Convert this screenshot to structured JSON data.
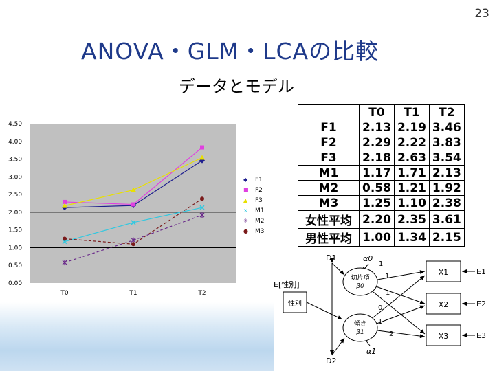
{
  "page_number": "23",
  "title": "ANOVA・GLM・LCAの比較",
  "subtitle": "データとモデル",
  "chart_data": {
    "type": "line",
    "title": "",
    "xlabel": "",
    "ylabel": "",
    "categories": [
      "T0",
      "T1",
      "T2"
    ],
    "y_ticks": [
      "0.00",
      "0.50",
      "1.00",
      "1.50",
      "2.00",
      "2.50",
      "3.00",
      "3.50",
      "4.00",
      "4.50"
    ],
    "ylim": [
      0,
      4.5
    ],
    "legend_position": "right",
    "series": [
      {
        "name": "F1",
        "values": [
          2.13,
          2.19,
          3.46
        ],
        "color": "#1f1f8f",
        "marker": "◆"
      },
      {
        "name": "F2",
        "values": [
          2.29,
          2.22,
          3.83
        ],
        "color": "#e040e0",
        "marker": "■"
      },
      {
        "name": "F3",
        "values": [
          2.18,
          2.63,
          3.54
        ],
        "color": "#e8e000",
        "marker": "▲"
      },
      {
        "name": "M1",
        "values": [
          1.17,
          1.71,
          2.13
        ],
        "color": "#30c8e0",
        "marker": "×"
      },
      {
        "name": "M2",
        "values": [
          0.58,
          1.21,
          1.92
        ],
        "color": "#6a2a8a",
        "marker": "✳"
      },
      {
        "name": "M3",
        "values": [
          1.25,
          1.1,
          2.38
        ],
        "color": "#7a1a1a",
        "marker": "●"
      }
    ]
  },
  "table": {
    "columns": [
      "",
      "T0",
      "T1",
      "T2"
    ],
    "rows": [
      {
        "label": "F1",
        "values": [
          "2.13",
          "2.19",
          "3.46"
        ]
      },
      {
        "label": "F2",
        "values": [
          "2.29",
          "2.22",
          "3.83"
        ]
      },
      {
        "label": "F3",
        "values": [
          "2.18",
          "2.63",
          "3.54"
        ]
      },
      {
        "label": "M1",
        "values": [
          "1.17",
          "1.71",
          "2.13"
        ]
      },
      {
        "label": "M2",
        "values": [
          "0.58",
          "1.21",
          "1.92"
        ]
      },
      {
        "label": "M3",
        "values": [
          "1.25",
          "1.10",
          "2.38"
        ]
      },
      {
        "label": "女性平均",
        "values": [
          "2.20",
          "2.35",
          "3.61"
        ]
      },
      {
        "label": "男性平均",
        "values": [
          "1.00",
          "1.34",
          "2.15"
        ]
      }
    ]
  },
  "diagram": {
    "sex_box_label": "E[性別]",
    "sex_node": "性別",
    "intercept_node": [
      "切片項",
      "β0"
    ],
    "slope_node": [
      "傾き",
      "β1"
    ],
    "alpha0": "α0",
    "alpha1": "α1",
    "d1": "D1",
    "d2": "D2",
    "x_nodes": [
      "X1",
      "X2",
      "X3"
    ],
    "e_labels": [
      "E1",
      "E2",
      "E3"
    ],
    "path_coefficients": [
      "1",
      "1",
      "1",
      "0",
      "1",
      "2"
    ]
  }
}
